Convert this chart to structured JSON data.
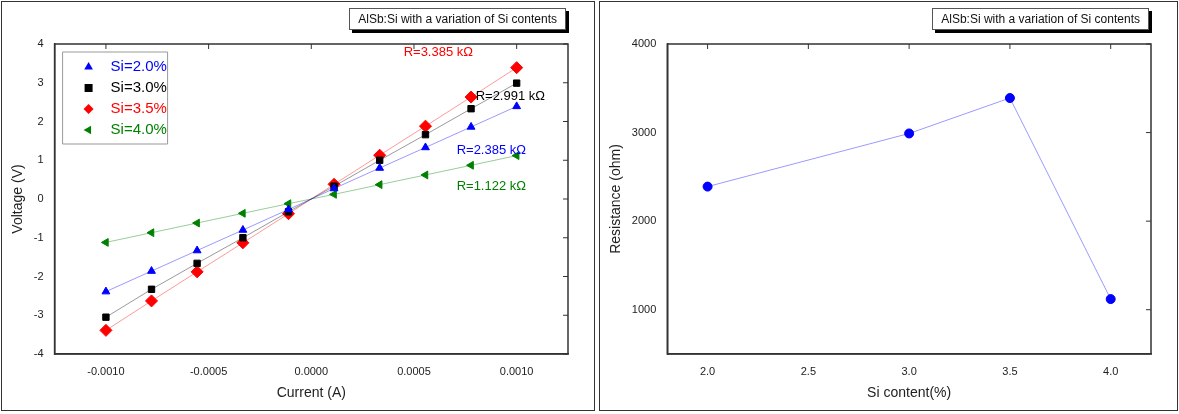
{
  "chart_data": [
    {
      "type": "line",
      "title": "AlSb:Si with a variation of Si contents",
      "xlabel": "Current (A)",
      "ylabel": "Voltage (V)",
      "x": [
        -0.001,
        -0.000778,
        -0.000556,
        -0.000333,
        -0.000111,
        0.000111,
        0.000333,
        0.000556,
        0.000778,
        0.001
      ],
      "series": [
        {
          "name": "Si=2.0%",
          "color": "#0000ff",
          "marker": "triangle",
          "values": [
            -2.39,
            -1.86,
            -1.33,
            -0.8,
            -0.27,
            0.27,
            0.8,
            1.33,
            1.86,
            2.39
          ]
        },
        {
          "name": "Si=3.0%",
          "color": "#000000",
          "marker": "square",
          "values": [
            -3.05,
            -2.33,
            -1.66,
            -1.0,
            -0.33,
            0.33,
            1.0,
            1.66,
            2.33,
            2.99
          ]
        },
        {
          "name": "Si=3.5%",
          "color": "#ff0000",
          "marker": "diamond",
          "values": [
            -3.39,
            -2.63,
            -1.88,
            -1.13,
            -0.38,
            0.38,
            1.13,
            1.88,
            2.63,
            3.39
          ]
        },
        {
          "name": "Si=4.0%",
          "color": "#008000",
          "marker": "triangle-left",
          "values": [
            -1.12,
            -0.87,
            -0.62,
            -0.37,
            -0.12,
            0.12,
            0.37,
            0.62,
            0.87,
            1.12
          ]
        }
      ],
      "annotations": [
        "R=2.385 kΩ",
        "R=2.991 kΩ",
        "R=3.385 kΩ",
        "R=1.122 kΩ"
      ],
      "xlim": [
        -0.00125,
        0.00125
      ],
      "xticks": [
        {
          "value": -0.001,
          "label": "-0.0010"
        },
        {
          "value": -0.0005,
          "label": "-0.0005"
        },
        {
          "value": 0,
          "label": "0.0000"
        },
        {
          "value": 0.0005,
          "label": "0.0005"
        },
        {
          "value": 0.001,
          "label": "0.0010"
        }
      ],
      "ylim": [
        -4,
        4
      ],
      "yticks": [
        -4,
        -3,
        -2,
        -1,
        0,
        1,
        2,
        3,
        4
      ],
      "legend": "top left",
      "grid": false
    },
    {
      "type": "line",
      "title": "AlSb:Si with a variation of Si contents",
      "xlabel": "Si content(%)",
      "ylabel": "Resistance (ohm)",
      "x": [
        2,
        3,
        3.5,
        4
      ],
      "series": [
        {
          "color": "#0000ff",
          "marker": "circle",
          "values": [
            2390,
            2990,
            3390,
            1120
          ]
        }
      ],
      "xlim": [
        1.8,
        4.2
      ],
      "xticks": [
        {
          "value": 2,
          "label": "2.0"
        },
        {
          "value": 2.5,
          "label": "2.5"
        },
        {
          "value": 3,
          "label": "3.0"
        },
        {
          "value": 3.5,
          "label": "3.5"
        },
        {
          "value": 4,
          "label": "4.0"
        }
      ],
      "ylim": [
        500,
        4000
      ],
      "yticks": [
        1000,
        2000,
        3000,
        4000
      ],
      "legend": false,
      "grid": false
    }
  ]
}
